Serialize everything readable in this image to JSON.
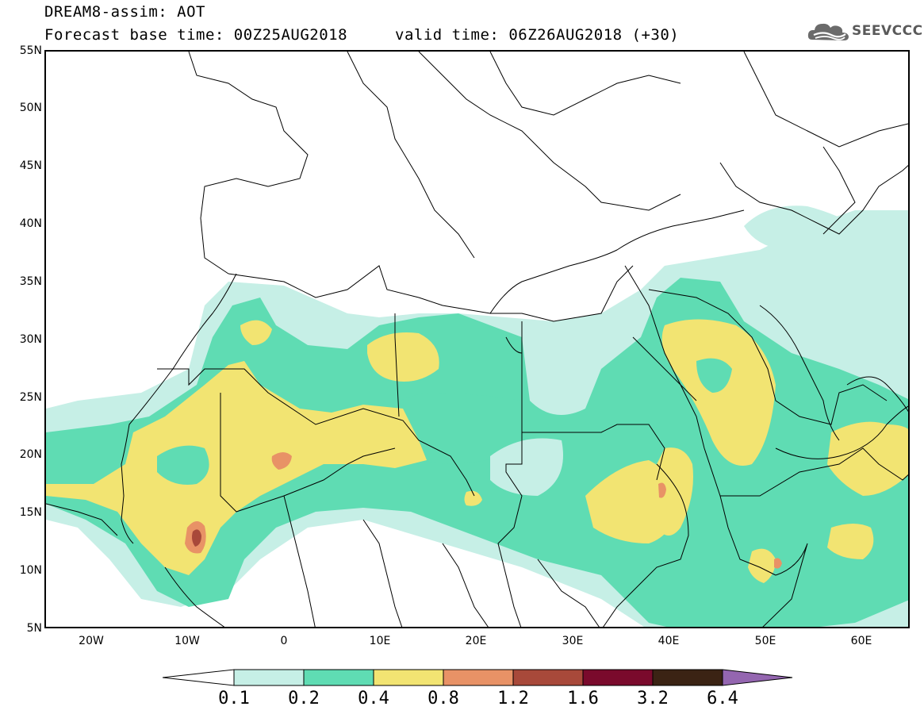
{
  "title": {
    "line1": "DREAM8-assim: AOT",
    "base_time": "Forecast base time: 00Z25AUG2018",
    "valid_time": "valid time: 06Z26AUG2018 (+30)"
  },
  "logo": {
    "text": "SEEVCCC",
    "icon": "cloud-logo-icon"
  },
  "map": {
    "lat_ticks": [
      "55N",
      "50N",
      "45N",
      "40N",
      "35N",
      "30N",
      "25N",
      "20N",
      "15N",
      "10N",
      "5N"
    ],
    "lon_ticks": [
      "20W",
      "10W",
      "0",
      "10E",
      "20E",
      "30E",
      "40E",
      "50E",
      "60E"
    ],
    "lon_range": [
      -25,
      65
    ],
    "lat_range": [
      5,
      55
    ]
  },
  "colorbar": {
    "levels": [
      "0.1",
      "0.2",
      "0.4",
      "0.8",
      "1.2",
      "1.6",
      "3.2",
      "6.4"
    ],
    "colors": [
      "#ffffff",
      "#c6efe6",
      "#5fdcb3",
      "#f2e472",
      "#e89266",
      "#a8493a",
      "#7a0a2c",
      "#3b2314",
      "#9466b0"
    ]
  }
}
